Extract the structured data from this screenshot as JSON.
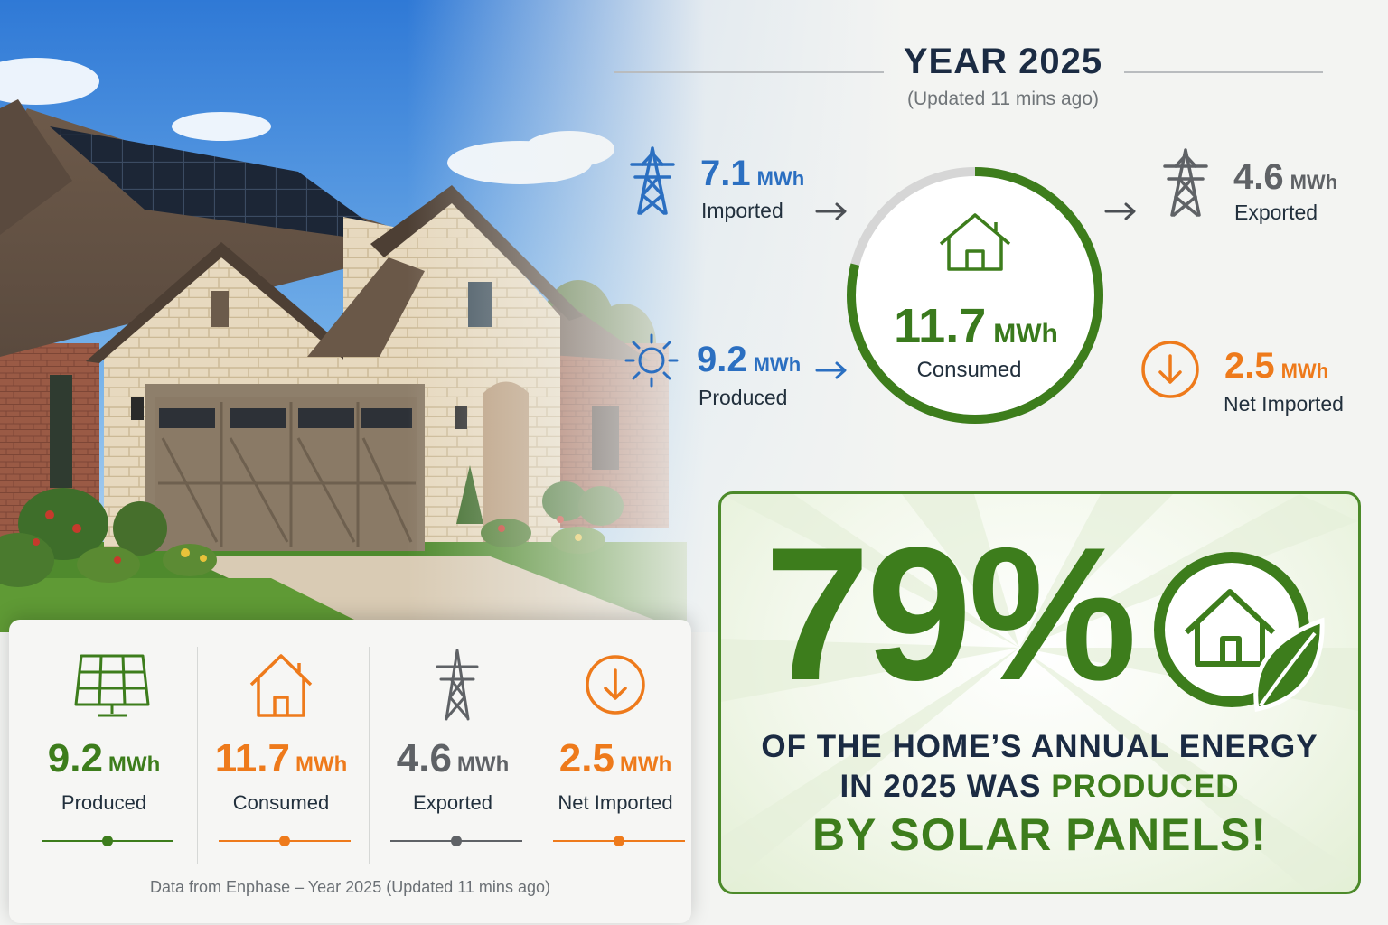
{
  "header": {
    "title": "YEAR 2025",
    "updated": "(Updated 11 mins ago)"
  },
  "flow": {
    "imported": {
      "value": "7.1",
      "unit": "MWh",
      "label": "Imported",
      "icon": "transmission-tower-icon"
    },
    "produced": {
      "value": "9.2",
      "unit": "MWh",
      "label": "Produced",
      "icon": "sun-icon"
    },
    "consumed": {
      "value": "11.7",
      "unit": "MWh",
      "label": "Consumed",
      "icon": "house-icon",
      "ring_fraction": 0.79
    },
    "exported": {
      "value": "4.6",
      "unit": "MWh",
      "label": "Exported",
      "icon": "transmission-tower-icon"
    },
    "net_imported": {
      "value": "2.5",
      "unit": "MWh",
      "label": "Net Imported",
      "icon": "arrow-down-circle-icon"
    }
  },
  "summary": {
    "items": [
      {
        "value": "9.2",
        "unit": "MWh",
        "label": "Produced",
        "icon": "solar-panel-icon",
        "color": "#3d7d1c"
      },
      {
        "value": "11.7",
        "unit": "MWh",
        "label": "Consumed",
        "icon": "house-icon",
        "color": "#ee7a1b"
      },
      {
        "value": "4.6",
        "unit": "MWh",
        "label": "Exported",
        "icon": "transmission-tower-icon",
        "color": "#5f6266"
      },
      {
        "value": "2.5",
        "unit": "MWh",
        "label": "Net Imported",
        "icon": "arrow-down-circle-icon",
        "color": "#ee7a1b"
      }
    ],
    "footnote": "Data from Enphase – Year 2025 (Updated 11 mins ago)"
  },
  "highlight": {
    "percent": "79%",
    "line1": "OF THE HOME’S ANNUAL ENERGY",
    "line2_a": "IN 2025 WAS ",
    "line2_b": "PRODUCED",
    "line3": "BY SOLAR PANELS!",
    "badge_icon": "eco-house-leaf-icon"
  },
  "colors": {
    "green": "#3d7d1c",
    "blue": "#2b6fc1",
    "orange": "#ee7a1b",
    "gray": "#5f6266",
    "navy": "#1b2b43"
  }
}
